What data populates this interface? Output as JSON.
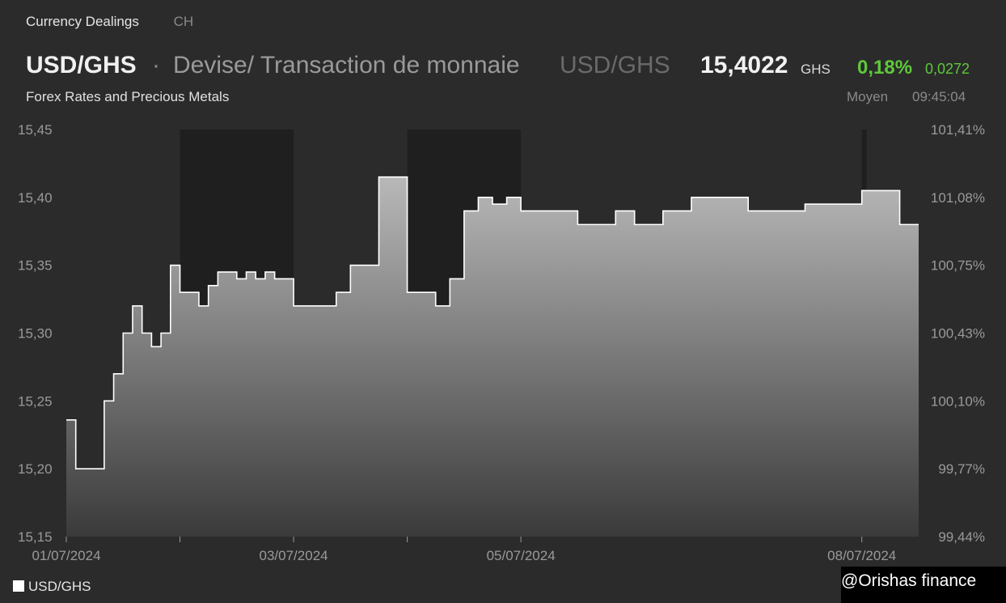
{
  "nav": {
    "tab1": "Currency Dealings",
    "tab2": "CH"
  },
  "header": {
    "pair": "USD/GHS",
    "dot": "·",
    "description": "Devise/ Transaction de monnaie",
    "symbol": "USD/GHS",
    "price": "15,4022",
    "currency": "GHS",
    "change_pct": "0,18%",
    "change_abs": "0,0272",
    "subtitle": "Forex Rates and Precious Metals",
    "price_type": "Moyen",
    "time": "09:45:04"
  },
  "colors": {
    "positive": "#5ec93a",
    "line": "#ffffff",
    "background": "#2b2b2b",
    "night_band": "#1f1f1f"
  },
  "chart_data": {
    "type": "area",
    "series": [
      {
        "name": "USD/GHS",
        "x": [
          "01/07/2024 00:00",
          "01/07/2024 02:00",
          "01/07/2024 04:00",
          "01/07/2024 06:00",
          "01/07/2024 08:00",
          "01/07/2024 10:00",
          "01/07/2024 12:00",
          "01/07/2024 14:00",
          "01/07/2024 16:00",
          "01/07/2024 18:00",
          "01/07/2024 20:00",
          "01/07/2024 22:00",
          "02/07/2024 00:00",
          "02/07/2024 02:00",
          "02/07/2024 04:00",
          "02/07/2024 06:00",
          "02/07/2024 08:00",
          "02/07/2024 10:00",
          "02/07/2024 12:00",
          "02/07/2024 14:00",
          "02/07/2024 16:00",
          "02/07/2024 18:00",
          "02/07/2024 20:00",
          "02/07/2024 22:00",
          "03/07/2024 00:00",
          "03/07/2024 03:00",
          "03/07/2024 06:00",
          "03/07/2024 09:00",
          "03/07/2024 12:00",
          "03/07/2024 15:00",
          "03/07/2024 18:00",
          "03/07/2024 21:00",
          "04/07/2024 00:00",
          "04/07/2024 03:00",
          "04/07/2024 06:00",
          "04/07/2024 09:00",
          "04/07/2024 12:00",
          "04/07/2024 15:00",
          "04/07/2024 18:00",
          "04/07/2024 21:00",
          "05/07/2024 00:00",
          "05/07/2024 04:00",
          "05/07/2024 08:00",
          "05/07/2024 12:00",
          "05/07/2024 16:00",
          "05/07/2024 20:00",
          "06/07/2024 00:00",
          "06/07/2024 06:00",
          "06/07/2024 12:00",
          "07/07/2024 00:00",
          "07/07/2024 12:00",
          "08/07/2024 00:00",
          "08/07/2024 04:00",
          "08/07/2024 08:00"
        ],
        "values": [
          15.236,
          15.2,
          15.2,
          15.2,
          15.25,
          15.27,
          15.3,
          15.32,
          15.3,
          15.29,
          15.3,
          15.35,
          15.33,
          15.33,
          15.32,
          15.335,
          15.345,
          15.345,
          15.34,
          15.345,
          15.34,
          15.345,
          15.34,
          15.34,
          15.32,
          15.32,
          15.32,
          15.33,
          15.35,
          15.35,
          15.415,
          15.415,
          15.33,
          15.33,
          15.32,
          15.34,
          15.39,
          15.4,
          15.395,
          15.4,
          15.39,
          15.39,
          15.39,
          15.38,
          15.38,
          15.39,
          15.38,
          15.39,
          15.4,
          15.39,
          15.395,
          15.405,
          15.405,
          15.38
        ]
      }
    ],
    "x_ticks": [
      "01/07/2024",
      "03/07/2024",
      "05/07/2024",
      "08/07/2024"
    ],
    "y_ticks_left": [
      "15,45",
      "15,40",
      "15,35",
      "15,30",
      "15,25",
      "15,20",
      "15,15"
    ],
    "y_ticks_right": [
      "101,41%",
      "101,08%",
      "100,75%",
      "100,43%",
      "100,10%",
      "99,77%",
      "99,44%"
    ],
    "ylim": [
      15.15,
      15.45
    ],
    "grid": false,
    "legend": "bottom-left"
  },
  "legend": {
    "label": "USD/GHS"
  },
  "watermark": "@Orishas finance"
}
